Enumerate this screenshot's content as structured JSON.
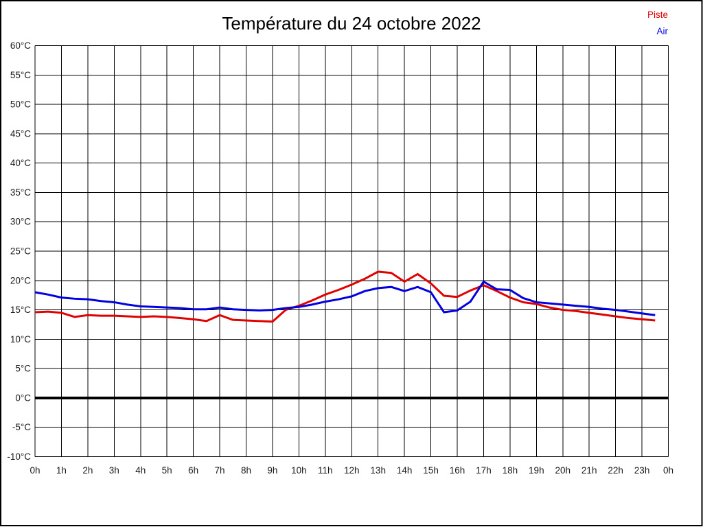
{
  "title": "Température du 24 octobre 2022",
  "legend": [
    {
      "label": "Piste",
      "color": "#e10000"
    },
    {
      "label": "Air",
      "color": "#0000e1"
    }
  ],
  "chart_data": {
    "type": "line",
    "title": "Température du 24 octobre 2022",
    "xlabel": "",
    "ylabel": "",
    "xlim": [
      0,
      24
    ],
    "ylim": [
      -10,
      60
    ],
    "y_step": 5,
    "grid": true,
    "legend_position": "top-right",
    "zero_line": {
      "value": 0,
      "color": "#000000"
    },
    "x_tick_labels": [
      "0h",
      "1h",
      "2h",
      "3h",
      "4h",
      "5h",
      "6h",
      "7h",
      "8h",
      "9h",
      "10h",
      "11h",
      "12h",
      "13h",
      "14h",
      "15h",
      "16h",
      "17h",
      "18h",
      "19h",
      "20h",
      "21h",
      "22h",
      "23h",
      "0h"
    ],
    "y_tick_labels": [
      "60°C",
      "55°C",
      "50°C",
      "45°C",
      "40°C",
      "35°C",
      "30°C",
      "25°C",
      "20°C",
      "15°C",
      "10°C",
      "5°C",
      "0°C",
      "-5°C",
      "-10°C"
    ],
    "x_unit": "hours",
    "y_unit": "°C",
    "x": [
      0,
      0.5,
      1,
      1.5,
      2,
      2.5,
      3,
      3.5,
      4,
      4.5,
      5,
      5.5,
      6,
      6.5,
      7,
      7.5,
      8,
      8.5,
      9,
      9.5,
      10,
      10.5,
      11,
      11.5,
      12,
      12.5,
      13,
      13.5,
      14,
      14.5,
      15,
      15.5,
      16,
      16.5,
      17,
      17.5,
      18,
      18.5,
      19,
      19.5,
      20,
      20.5,
      21,
      21.5,
      22,
      22.5,
      23,
      23.5
    ],
    "series": [
      {
        "name": "Piste",
        "color": "#e10000",
        "values": [
          14.6,
          14.7,
          14.5,
          13.8,
          14.1,
          14.0,
          14.0,
          13.9,
          13.8,
          13.9,
          13.8,
          13.6,
          13.4,
          13.1,
          14.1,
          13.3,
          13.2,
          13.1,
          13.0,
          15.0,
          15.7,
          16.6,
          17.6,
          18.4,
          19.3,
          20.3,
          21.5,
          21.3,
          19.8,
          21.1,
          19.5,
          17.4,
          17.2,
          18.3,
          19.2,
          18.2,
          17.1,
          16.3,
          16.0,
          15.4,
          15.0,
          14.8,
          14.5,
          14.2,
          13.9,
          13.6,
          13.4,
          13.2
        ]
      },
      {
        "name": "Air",
        "color": "#0000e1",
        "values": [
          18.0,
          17.6,
          17.1,
          16.9,
          16.8,
          16.5,
          16.3,
          15.9,
          15.6,
          15.5,
          15.4,
          15.3,
          15.1,
          15.1,
          15.4,
          15.1,
          15.0,
          14.9,
          15.0,
          15.3,
          15.5,
          15.9,
          16.4,
          16.8,
          17.3,
          18.2,
          18.7,
          18.9,
          18.2,
          18.9,
          18.0,
          14.6,
          14.9,
          16.4,
          19.8,
          18.5,
          18.4,
          17.0,
          16.3,
          16.1,
          15.9,
          15.7,
          15.5,
          15.2,
          15.0,
          14.7,
          14.4,
          14.1
        ]
      }
    ]
  }
}
